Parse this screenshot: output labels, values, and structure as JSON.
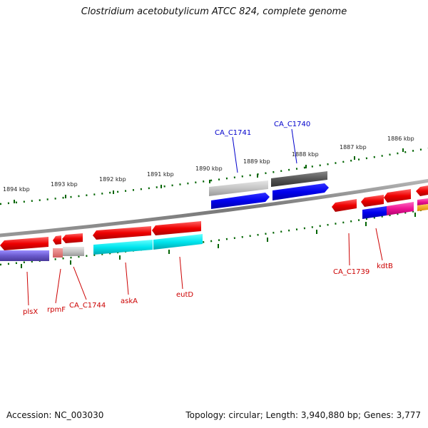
{
  "title": "Clostridium acetobutylicum ATCC 824, complete genome",
  "footer": {
    "accession": "Accession: NC_003030",
    "topology": "Topology: circular; Length: 3,940,880 bp; Genes: 3,777"
  },
  "scale_labels": [
    "1894 kbp",
    "1893 kbp",
    "1892 kbp",
    "1891 kbp",
    "1890 kbp",
    "1889 kbp",
    "1888 kbp",
    "1887 kbp",
    "1886 kbp"
  ],
  "gene_labels": {
    "top": [
      {
        "text": "CA_C1741",
        "color": "#0000cc"
      },
      {
        "text": "CA_C1740",
        "color": "#0000cc"
      }
    ],
    "bottom": [
      {
        "text": "plsX",
        "color": "#cc0000"
      },
      {
        "text": "rpmF",
        "color": "#cc0000"
      },
      {
        "text": "CA_C1744",
        "color": "#cc0000"
      },
      {
        "text": "askA",
        "color": "#cc0000"
      },
      {
        "text": "eutD",
        "color": "#cc0000"
      },
      {
        "text": "CA_C1739",
        "color": "#cc0000"
      },
      {
        "text": "kdtB",
        "color": "#cc0000"
      }
    ]
  },
  "colors": {
    "backbone": "#8a8a8a",
    "cds": "#ee0000",
    "feature_blue": "#0000ee",
    "feature_cyan": "#00e5ee",
    "feature_purple": "#6a5acd",
    "feature_magenta": "#ee1493",
    "feature_orange": "#ee9a00",
    "feature_gray": "#bdbdbd",
    "feature_darkgray": "#555555",
    "tick": "#006400"
  }
}
